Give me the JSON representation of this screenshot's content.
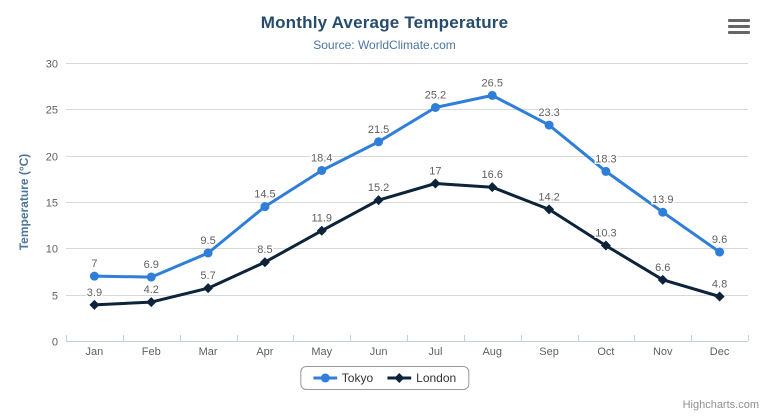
{
  "chart_data": {
    "type": "line",
    "title": "Monthly Average Temperature",
    "subtitle": "Source: WorldClimate.com",
    "categories": [
      "Jan",
      "Feb",
      "Mar",
      "Apr",
      "May",
      "Jun",
      "Jul",
      "Aug",
      "Sep",
      "Oct",
      "Nov",
      "Dec"
    ],
    "series": [
      {
        "name": "Tokyo",
        "color": "#2f7ed8",
        "marker": "circle",
        "values": [
          7,
          6.9,
          9.5,
          14.5,
          18.4,
          21.5,
          25.2,
          26.5,
          23.3,
          18.3,
          13.9,
          9.6
        ]
      },
      {
        "name": "London",
        "color": "#0d233a",
        "marker": "diamond",
        "values": [
          3.9,
          4.2,
          5.7,
          8.5,
          11.9,
          15.2,
          17,
          16.6,
          14.2,
          10.3,
          6.6,
          4.8
        ]
      }
    ],
    "xlabel": "",
    "ylabel": "Temperature (°C)",
    "ylim": [
      0,
      30
    ],
    "y_ticks": [
      0,
      5,
      10,
      15,
      20,
      25,
      30
    ],
    "grid": true,
    "data_labels": true,
    "legend_position": "bottom-center"
  },
  "ui": {
    "export_menu_icon": "hamburger-icon",
    "credit": "Highcharts.com"
  },
  "colors": {
    "title": "#274b6d",
    "subtitle": "#4d759e",
    "axis_title": "#4d759e",
    "tick_label": "#606060",
    "data_label": "#606060",
    "grid_line": "#d8d8d8",
    "axis_line": "#c0d0e0",
    "legend_text": "#333333",
    "legend_border": "#999999",
    "credit": "#909090",
    "burger": "#666666"
  }
}
